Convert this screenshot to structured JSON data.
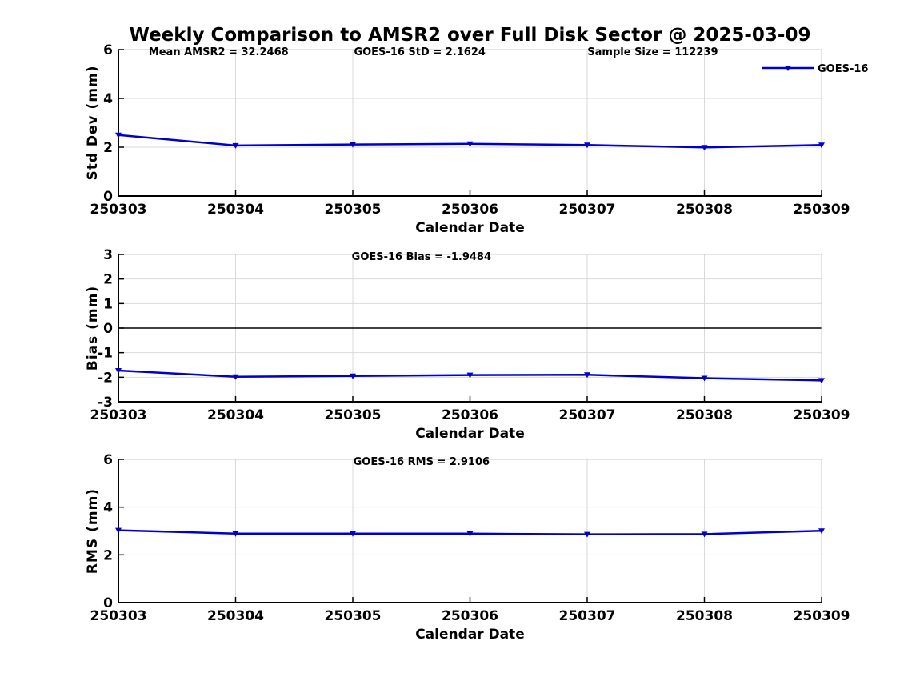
{
  "title": "Weekly Comparison to AMSR2 over Full Disk Sector @ 2025-03-09",
  "colors": {
    "series": "#0000CC",
    "grid": "#d9d9d9",
    "spine_light": "#c8c8c8",
    "axis": "#000000",
    "text": "#000000"
  },
  "legend": {
    "label": "GOES-16"
  },
  "chart_data": [
    {
      "type": "line",
      "name": "std-dev",
      "annotations": [
        "Mean AMSR2 = 32.2468",
        "GOES-16 StD = 2.1624",
        "Sample Size = 112239"
      ],
      "categories": [
        "250303",
        "250304",
        "250305",
        "250306",
        "250307",
        "250308",
        "250309"
      ],
      "series": [
        {
          "name": "GOES-16",
          "values": [
            2.5,
            2.07,
            2.11,
            2.14,
            2.09,
            1.99,
            2.09
          ]
        }
      ],
      "xlabel": "Calendar Date",
      "ylabel": "Std Dev (mm)",
      "ylim": [
        0,
        6
      ],
      "yticks": [
        0,
        2,
        4,
        6
      ],
      "grid": true,
      "zero_line": false,
      "legend_visible": true,
      "legend_position": "top-right"
    },
    {
      "type": "line",
      "name": "bias",
      "annotations": [
        "GOES-16 Bias  = -1.9484"
      ],
      "categories": [
        "250303",
        "250304",
        "250305",
        "250306",
        "250307",
        "250308",
        "250309"
      ],
      "series": [
        {
          "name": "GOES-16",
          "values": [
            -1.73,
            -1.98,
            -1.95,
            -1.91,
            -1.9,
            -2.04,
            -2.13
          ]
        }
      ],
      "xlabel": "Calendar Date",
      "ylabel": "Bias (mm)",
      "ylim": [
        -3,
        3
      ],
      "yticks": [
        -3,
        -2,
        -1,
        0,
        1,
        2,
        3
      ],
      "grid": true,
      "zero_line": true,
      "legend_visible": false
    },
    {
      "type": "line",
      "name": "rms",
      "annotations": [
        "GOES-16 RMS = 2.9106"
      ],
      "categories": [
        "250303",
        "250304",
        "250305",
        "250306",
        "250307",
        "250308",
        "250309"
      ],
      "series": [
        {
          "name": "GOES-16",
          "values": [
            3.03,
            2.89,
            2.89,
            2.89,
            2.86,
            2.87,
            3.01
          ]
        }
      ],
      "xlabel": "Calendar Date",
      "ylabel": "RMS (mm)",
      "ylim": [
        0,
        6
      ],
      "yticks": [
        0,
        2,
        4,
        6
      ],
      "grid": true,
      "zero_line": false,
      "legend_visible": false
    }
  ]
}
